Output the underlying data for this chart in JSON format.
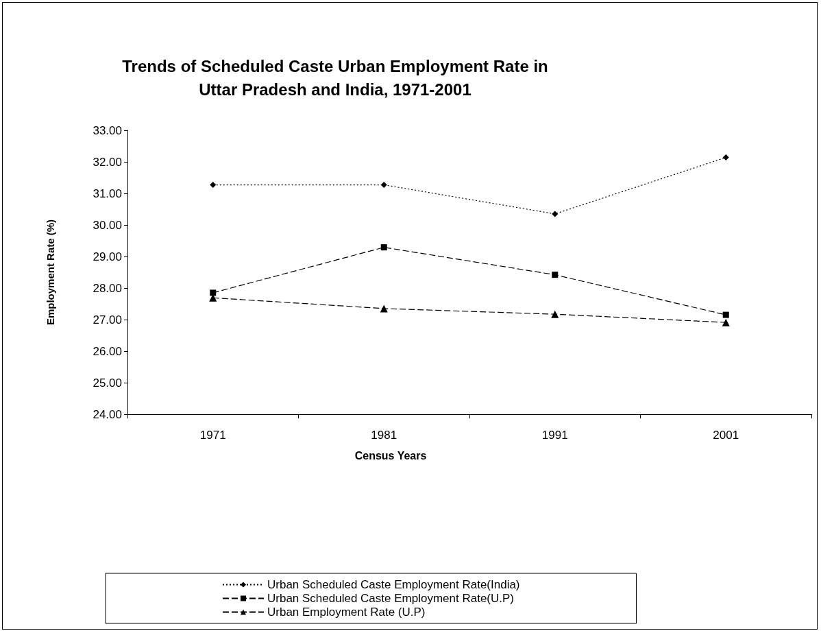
{
  "chart_data": {
    "type": "line",
    "title": "Trends of Scheduled Caste Urban Employment Rate in\nUttar Pradesh and India, 1971-2001",
    "xlabel": "Census Years",
    "ylabel": "Employment Rate (%)",
    "categories": [
      "1971",
      "1981",
      "1991",
      "2001"
    ],
    "series": [
      {
        "name": "Urban Scheduled Caste Employment Rate(India)",
        "color": "#000000",
        "marker": "diamond",
        "line_style": "dotted",
        "values": [
          31.27,
          31.27,
          30.35,
          32.14
        ]
      },
      {
        "name": "Urban Scheduled Caste Employment Rate(U.P)",
        "color": "#000000",
        "marker": "square",
        "line_style": "dashed",
        "values": [
          27.85,
          29.29,
          28.42,
          27.15
        ]
      },
      {
        "name": "Urban Employment Rate (U.P)",
        "color": "#000000",
        "marker": "triangle",
        "line_style": "dashed",
        "values": [
          27.69,
          27.35,
          27.17,
          26.91
        ]
      }
    ],
    "ylim": [
      24,
      33
    ],
    "yticks": [
      {
        "value": 24,
        "label": "24.00"
      },
      {
        "value": 25,
        "label": "25.00"
      },
      {
        "value": 26,
        "label": "26.00"
      },
      {
        "value": 27,
        "label": "27.00"
      },
      {
        "value": 28,
        "label": "28.00"
      },
      {
        "value": 29,
        "label": "29.00"
      },
      {
        "value": 30,
        "label": "30.00"
      },
      {
        "value": 31,
        "label": "31.00"
      },
      {
        "value": 32,
        "label": "32.00"
      },
      {
        "value": 33,
        "label": "33.00"
      }
    ],
    "grid": false,
    "legend": "bottom"
  }
}
